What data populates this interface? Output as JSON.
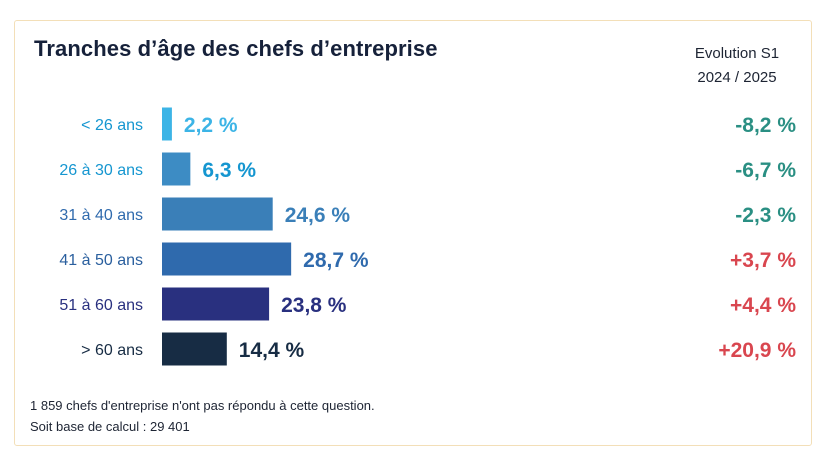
{
  "chart_data": {
    "type": "bar",
    "orientation": "horizontal",
    "title": "Tranches d’âge des chefs d’entreprise",
    "categories": [
      "< 26 ans",
      "26 à 30 ans",
      "31 à 40 ans",
      "41 à 50 ans",
      "51 à 60 ans",
      "> 60 ans"
    ],
    "values": [
      2.2,
      6.3,
      24.6,
      28.7,
      23.8,
      14.4
    ],
    "value_labels": [
      "2,2 %",
      "6,3 %",
      "24,6 %",
      "28,7 %",
      "23,8 %",
      "14,4 %"
    ],
    "bar_colors": [
      "#3cb4e6",
      "#3d8cc4",
      "#3a7fb8",
      "#2f6aad",
      "#29307f",
      "#172c44"
    ],
    "evolution": {
      "header": [
        "Evolution S1",
        "2024 / 2025"
      ],
      "values": [
        -8.2,
        -6.7,
        -2.3,
        3.7,
        4.4,
        20.9
      ],
      "labels": [
        "-8,2 %",
        "-6,7 %",
        "-2,3 %",
        "+3,7 %",
        "+4,4 %",
        "+20,9 %"
      ],
      "positive_color": "#d9464f",
      "negative_color": "#2a8f83"
    },
    "grid": false,
    "legend": "none"
  },
  "footnote": {
    "line1": "1 859 chefs d'entreprise n'ont pas répondu à cette question.",
    "line2": "Soit base de calcul : 29 401"
  }
}
